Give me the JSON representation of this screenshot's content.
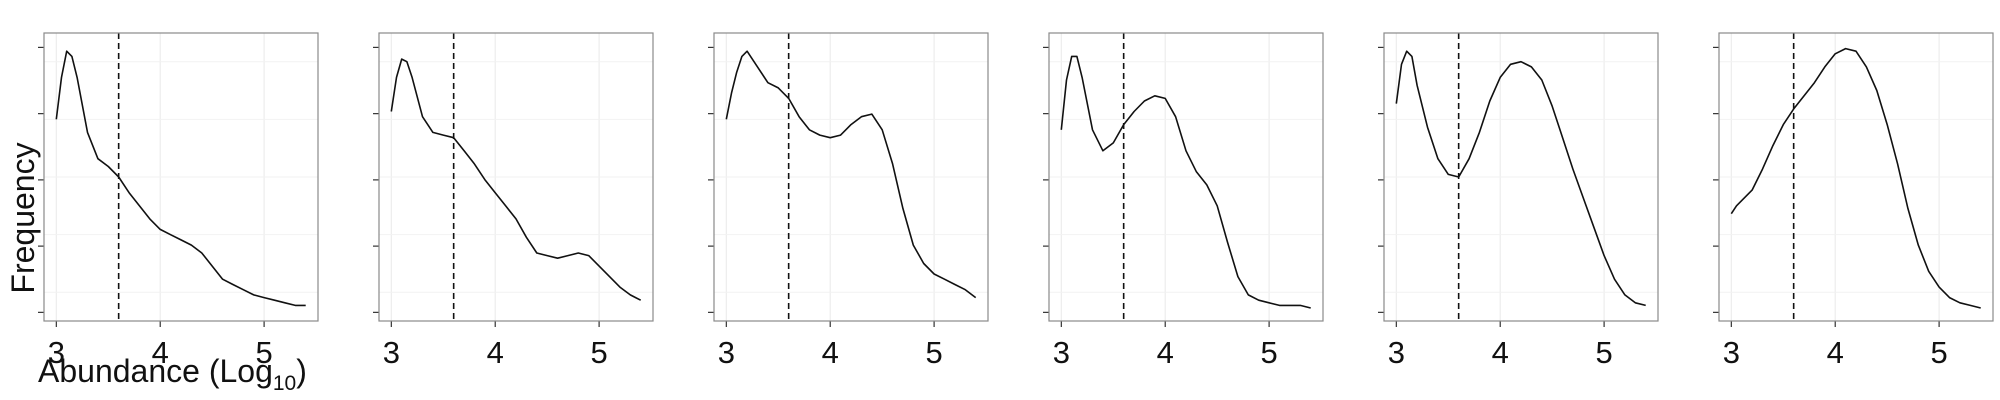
{
  "chart_data": {
    "type": "line",
    "xlabel": "Abundance (Log",
    "xlabel_subscript": "10",
    "xlabel_suffix": ")",
    "ylabel": "Frequency",
    "xlim": [
      3,
      5.4
    ],
    "x_ticks": [
      "3",
      "4",
      "5"
    ],
    "x_tick_values": [
      3,
      4,
      5
    ],
    "grid": true,
    "reference_line": {
      "x": 3.6,
      "style": "dashed"
    },
    "panels": [
      {
        "series": [
          {
            "x": [
              3.0,
              3.05,
              3.1,
              3.15,
              3.2,
              3.3,
              3.4,
              3.5,
              3.6,
              3.7,
              3.8,
              3.9,
              4.0,
              4.1,
              4.2,
              4.3,
              4.4,
              4.5,
              4.6,
              4.7,
              4.8,
              4.9,
              5.0,
              5.1,
              5.2,
              5.3,
              5.4
            ],
            "y": [
              0.72,
              0.88,
              0.98,
              0.96,
              0.88,
              0.67,
              0.57,
              0.54,
              0.5,
              0.44,
              0.39,
              0.34,
              0.3,
              0.28,
              0.26,
              0.24,
              0.21,
              0.16,
              0.11,
              0.09,
              0.07,
              0.05,
              0.04,
              0.03,
              0.02,
              0.01,
              0.01
            ]
          }
        ]
      },
      {
        "series": [
          {
            "x": [
              3.0,
              3.05,
              3.1,
              3.15,
              3.2,
              3.3,
              3.4,
              3.5,
              3.6,
              3.7,
              3.8,
              3.9,
              4.0,
              4.1,
              4.2,
              4.3,
              4.4,
              4.5,
              4.6,
              4.7,
              4.8,
              4.9,
              5.0,
              5.1,
              5.2,
              5.3,
              5.4
            ],
            "y": [
              0.75,
              0.88,
              0.95,
              0.94,
              0.88,
              0.73,
              0.67,
              0.66,
              0.65,
              0.6,
              0.55,
              0.49,
              0.44,
              0.39,
              0.34,
              0.27,
              0.21,
              0.2,
              0.19,
              0.2,
              0.21,
              0.2,
              0.16,
              0.12,
              0.08,
              0.05,
              0.03
            ]
          }
        ]
      },
      {
        "series": [
          {
            "x": [
              3.0,
              3.05,
              3.1,
              3.15,
              3.2,
              3.3,
              3.4,
              3.5,
              3.6,
              3.7,
              3.8,
              3.9,
              4.0,
              4.1,
              4.2,
              4.3,
              4.4,
              4.5,
              4.6,
              4.7,
              4.8,
              4.9,
              5.0,
              5.1,
              5.2,
              5.3,
              5.4
            ],
            "y": [
              0.72,
              0.82,
              0.9,
              0.96,
              0.98,
              0.92,
              0.86,
              0.84,
              0.8,
              0.73,
              0.68,
              0.66,
              0.65,
              0.66,
              0.7,
              0.73,
              0.74,
              0.68,
              0.55,
              0.38,
              0.24,
              0.17,
              0.13,
              0.11,
              0.09,
              0.07,
              0.04
            ]
          }
        ]
      },
      {
        "series": [
          {
            "x": [
              3.0,
              3.05,
              3.1,
              3.15,
              3.2,
              3.3,
              3.4,
              3.5,
              3.6,
              3.7,
              3.8,
              3.9,
              4.0,
              4.1,
              4.2,
              4.3,
              4.4,
              4.5,
              4.6,
              4.7,
              4.8,
              4.9,
              5.0,
              5.1,
              5.2,
              5.3,
              5.4
            ],
            "y": [
              0.68,
              0.87,
              0.96,
              0.96,
              0.88,
              0.68,
              0.6,
              0.63,
              0.7,
              0.75,
              0.79,
              0.81,
              0.8,
              0.73,
              0.6,
              0.52,
              0.47,
              0.39,
              0.25,
              0.12,
              0.05,
              0.03,
              0.02,
              0.01,
              0.01,
              0.01,
              0.0
            ]
          }
        ]
      },
      {
        "series": [
          {
            "x": [
              3.0,
              3.05,
              3.1,
              3.15,
              3.2,
              3.3,
              3.4,
              3.5,
              3.6,
              3.7,
              3.8,
              3.9,
              4.0,
              4.1,
              4.2,
              4.3,
              4.4,
              4.5,
              4.6,
              4.7,
              4.8,
              4.9,
              5.0,
              5.1,
              5.2,
              5.3,
              5.4
            ],
            "y": [
              0.78,
              0.93,
              0.98,
              0.96,
              0.85,
              0.69,
              0.57,
              0.51,
              0.5,
              0.57,
              0.67,
              0.79,
              0.88,
              0.93,
              0.94,
              0.92,
              0.87,
              0.77,
              0.65,
              0.53,
              0.42,
              0.31,
              0.2,
              0.11,
              0.05,
              0.02,
              0.01
            ]
          }
        ]
      },
      {
        "series": [
          {
            "x": [
              3.0,
              3.05,
              3.1,
              3.15,
              3.2,
              3.3,
              3.4,
              3.5,
              3.6,
              3.7,
              3.8,
              3.9,
              4.0,
              4.1,
              4.2,
              4.3,
              4.4,
              4.5,
              4.6,
              4.7,
              4.8,
              4.9,
              5.0,
              5.1,
              5.2,
              5.3,
              5.4
            ],
            "y": [
              0.36,
              0.39,
              0.41,
              0.43,
              0.45,
              0.53,
              0.62,
              0.7,
              0.76,
              0.81,
              0.86,
              0.92,
              0.97,
              0.99,
              0.98,
              0.92,
              0.83,
              0.7,
              0.55,
              0.38,
              0.24,
              0.14,
              0.08,
              0.04,
              0.02,
              0.01,
              0.0
            ]
          }
        ]
      }
    ]
  }
}
